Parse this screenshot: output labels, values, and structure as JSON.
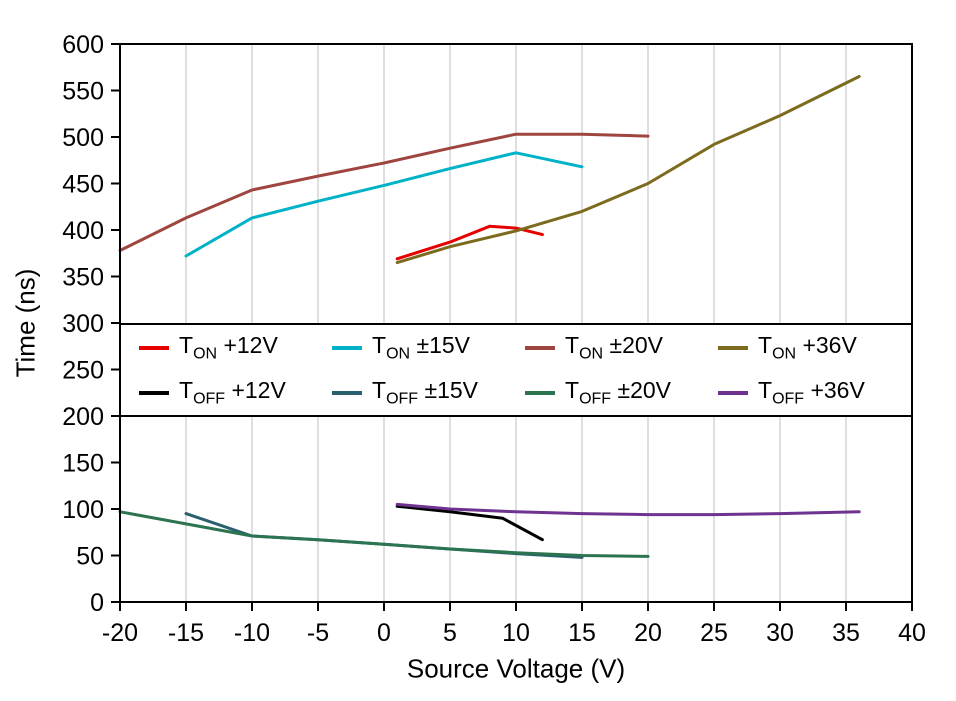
{
  "chart_data": {
    "type": "line",
    "title": "",
    "xlabel": "Source Voltage (V)",
    "ylabel": "Time (ns)",
    "xlim": [
      -20,
      40
    ],
    "ylim": [
      0,
      600
    ],
    "xticks": [
      -20,
      -15,
      -10,
      -5,
      0,
      5,
      10,
      15,
      20,
      25,
      30,
      35,
      40
    ],
    "yticks": [
      0,
      50,
      100,
      150,
      200,
      250,
      300,
      350,
      400,
      450,
      500,
      550,
      600
    ],
    "grid": {
      "vertical": true,
      "horizontal": false,
      "color": "#bfbfbf"
    },
    "legend": {
      "rows": 2,
      "items_per_row": 4,
      "position": "inside horizontal band between y=200 and y=300"
    },
    "series": [
      {
        "name": "T_ON +12V",
        "legend": {
          "main": "T",
          "sub": "ON",
          "rest": "+12V"
        },
        "color": "#e60000",
        "points": [
          [
            1,
            369
          ],
          [
            5,
            387
          ],
          [
            8,
            404
          ],
          [
            10,
            402
          ],
          [
            12,
            395
          ]
        ]
      },
      {
        "name": "T_ON ±15V",
        "legend": {
          "main": "T",
          "sub": "ON",
          "rest": "±15V"
        },
        "color": "#00b2c8",
        "points": [
          [
            -15,
            372
          ],
          [
            -10,
            413
          ],
          [
            -5,
            431
          ],
          [
            0,
            448
          ],
          [
            5,
            466
          ],
          [
            10,
            483
          ],
          [
            15,
            468
          ]
        ]
      },
      {
        "name": "T_ON ±20V",
        "legend": {
          "main": "T",
          "sub": "ON",
          "rest": "±20V"
        },
        "color": "#9f4540",
        "points": [
          [
            -20,
            378
          ],
          [
            -15,
            413
          ],
          [
            -10,
            443
          ],
          [
            -5,
            458
          ],
          [
            0,
            472
          ],
          [
            5,
            488
          ],
          [
            10,
            503
          ],
          [
            15,
            503
          ],
          [
            20,
            501
          ]
        ]
      },
      {
        "name": "T_ON +36V",
        "legend": {
          "main": "T",
          "sub": "ON",
          "rest": "+36V"
        },
        "color": "#7c6b1f",
        "points": [
          [
            1,
            365
          ],
          [
            5,
            382
          ],
          [
            10,
            399
          ],
          [
            15,
            420
          ],
          [
            20,
            450
          ],
          [
            25,
            492
          ],
          [
            30,
            523
          ],
          [
            36,
            565
          ]
        ]
      },
      {
        "name": "T_OFF +12V",
        "legend": {
          "main": "T",
          "sub": "OFF",
          "rest": "+12V"
        },
        "color": "#000000",
        "points": [
          [
            1,
            103
          ],
          [
            5,
            97
          ],
          [
            9,
            90
          ],
          [
            12,
            67
          ]
        ]
      },
      {
        "name": "T_OFF ±15V",
        "legend": {
          "main": "T",
          "sub": "OFF",
          "rest": "±15V"
        },
        "color": "#29606e",
        "points": [
          [
            -15,
            95
          ],
          [
            -10,
            71
          ],
          [
            -5,
            67
          ],
          [
            0,
            62
          ],
          [
            5,
            57
          ],
          [
            10,
            52
          ],
          [
            15,
            48
          ]
        ]
      },
      {
        "name": "T_OFF ±20V",
        "legend": {
          "main": "T",
          "sub": "OFF",
          "rest": "±20V"
        },
        "color": "#2c7450",
        "points": [
          [
            -20,
            97
          ],
          [
            -15,
            84
          ],
          [
            -10,
            71
          ],
          [
            -5,
            67
          ],
          [
            0,
            62
          ],
          [
            5,
            57
          ],
          [
            10,
            53
          ],
          [
            15,
            50
          ],
          [
            20,
            49
          ]
        ]
      },
      {
        "name": "T_OFF +36V",
        "legend": {
          "main": "T",
          "sub": "OFF",
          "rest": "+36V"
        },
        "color": "#6e3290",
        "points": [
          [
            1,
            105
          ],
          [
            5,
            100
          ],
          [
            10,
            97
          ],
          [
            15,
            95
          ],
          [
            20,
            94
          ],
          [
            25,
            94
          ],
          [
            30,
            95
          ],
          [
            36,
            97
          ]
        ]
      }
    ]
  }
}
